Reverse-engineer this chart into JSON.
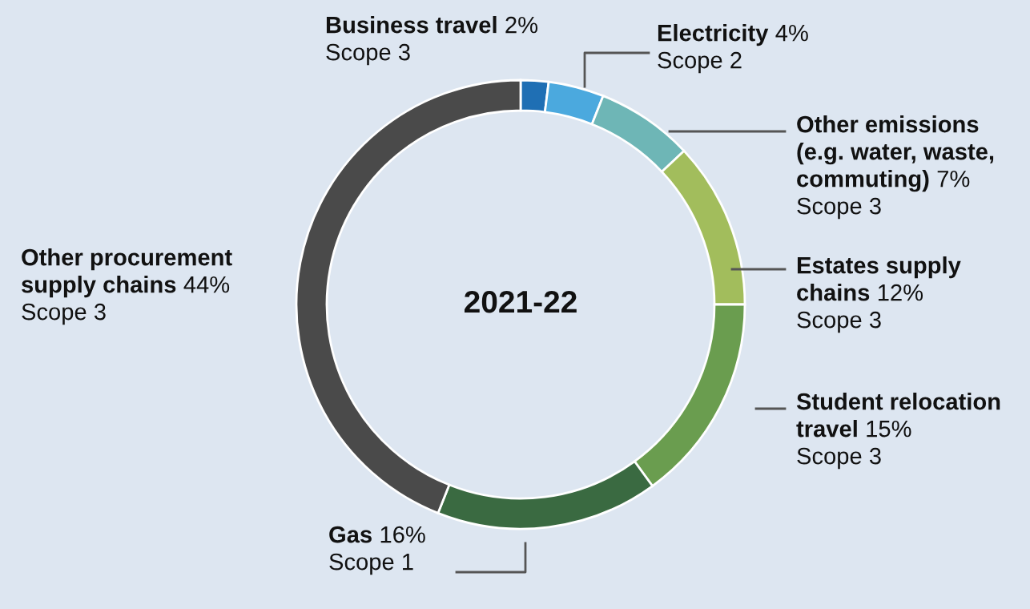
{
  "chart_data": {
    "type": "donut",
    "title": "2021-22",
    "categories": [
      "Business travel",
      "Electricity",
      "Other emissions\n(e.g. water, waste,\ncommuting)",
      "Estates supply\nchains",
      "Student relocation\ntravel",
      "Gas",
      "Other procurement\nsupply chains"
    ],
    "values": [
      2,
      4,
      7,
      12,
      15,
      16,
      44
    ],
    "value_labels": [
      "2%",
      "4%",
      "7%",
      "12%",
      "15%",
      "16%",
      "44%"
    ],
    "colors": [
      "#1f6fb4",
      "#4ba9de",
      "#6eb6b6",
      "#a2bd5c",
      "#6a9d4f",
      "#3a6a41",
      "#4a4a4a"
    ],
    "annotations": [
      "Scope 3",
      "Scope 2",
      "Scope 3",
      "Scope 3",
      "Scope 3",
      "Scope 1",
      "Scope 3"
    ]
  }
}
